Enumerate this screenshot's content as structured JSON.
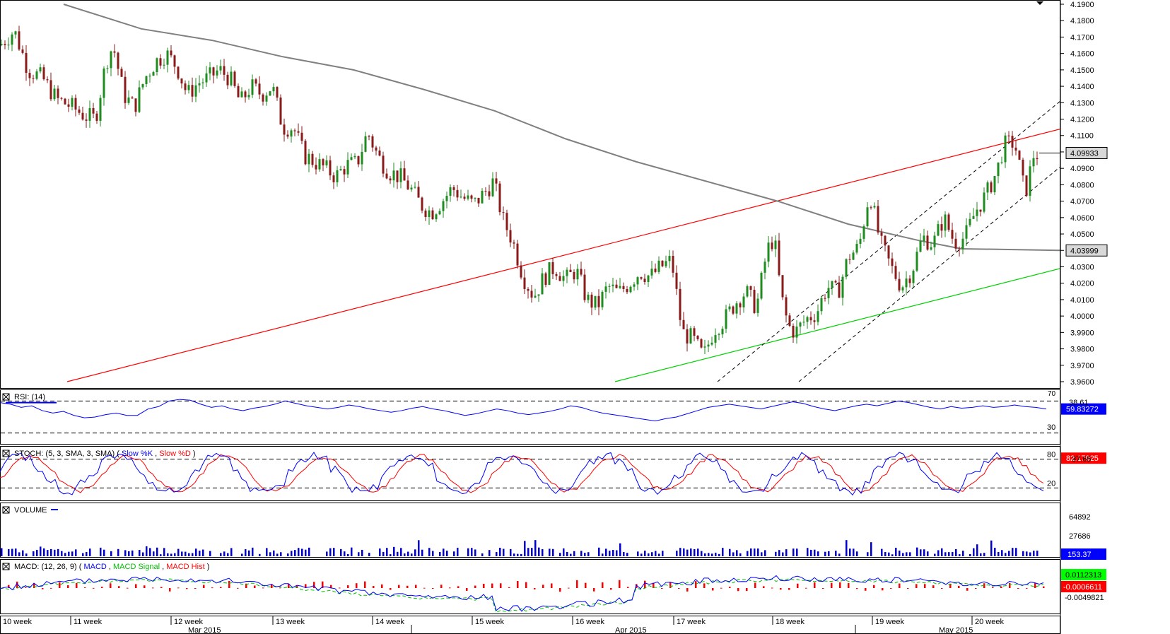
{
  "chart_data": {
    "type": "candlestick",
    "title": "",
    "colors": {
      "up_candle": "#1f8c1f",
      "down_candle": "#8b1a1a",
      "moving_average": "#808080",
      "upper_trendline": "#ff0000",
      "lower_trendline": "#00d000",
      "channel": "#000000",
      "rsi": "#0000ff",
      "stoch_k": "#0000ff",
      "stoch_d": "#ff0000",
      "volume": "#0000cc",
      "macd": "#0000ff",
      "macd_signal": "#00c000",
      "macd_hist": "#ff0000",
      "price_badge": "#d8d8d8",
      "value_badge_blue": "#0000ff",
      "value_badge_red": "#ff0000",
      "value_badge_green": "#00ff00"
    },
    "price_panel": {
      "ylim": [
        3.96,
        4.19
      ],
      "yticks": [
        "4.1900",
        "4.1800",
        "4.1700",
        "4.1600",
        "4.1500",
        "4.1400",
        "4.1300",
        "4.1200",
        "4.1100",
        "4.1000",
        "4.0900",
        "4.0800",
        "4.0700",
        "4.0600",
        "4.0500",
        "4.0400",
        "4.0300",
        "4.0200",
        "4.0100",
        "4.0000",
        "3.9900",
        "3.9800",
        "3.9700",
        "3.9600"
      ],
      "last_price_label": "4.09933",
      "ma_price_label": "4.03999",
      "price_points": [
        [
          0,
          4.165
        ],
        [
          20,
          4.174
        ],
        [
          40,
          4.15
        ],
        [
          60,
          4.145
        ],
        [
          80,
          4.132
        ],
        [
          100,
          4.128
        ],
        [
          120,
          4.122
        ],
        [
          135,
          4.12
        ],
        [
          150,
          4.155
        ],
        [
          160,
          4.165
        ],
        [
          175,
          4.135
        ],
        [
          190,
          4.127
        ],
        [
          205,
          4.145
        ],
        [
          220,
          4.155
        ],
        [
          235,
          4.16
        ],
        [
          250,
          4.152
        ],
        [
          265,
          4.135
        ],
        [
          280,
          4.142
        ],
        [
          295,
          4.145
        ],
        [
          310,
          4.15
        ],
        [
          325,
          4.145
        ],
        [
          340,
          4.13
        ],
        [
          355,
          4.14
        ],
        [
          370,
          4.135
        ],
        [
          385,
          4.14
        ],
        [
          400,
          4.115
        ],
        [
          415,
          4.115
        ],
        [
          430,
          4.098
        ],
        [
          445,
          4.094
        ],
        [
          460,
          4.09
        ],
        [
          475,
          4.085
        ],
        [
          490,
          4.092
        ],
        [
          505,
          4.093
        ],
        [
          520,
          4.112
        ],
        [
          535,
          4.097
        ],
        [
          550,
          4.088
        ],
        [
          565,
          4.085
        ],
        [
          580,
          4.078
        ],
        [
          595,
          4.068
        ],
        [
          610,
          4.063
        ],
        [
          625,
          4.07
        ],
        [
          640,
          4.078
        ],
        [
          655,
          4.072
        ],
        [
          670,
          4.068
        ],
        [
          685,
          4.075
        ],
        [
          698,
          4.082
        ],
        [
          712,
          4.058
        ],
        [
          725,
          4.046
        ],
        [
          740,
          4.024
        ],
        [
          755,
          4.012
        ],
        [
          770,
          4.024
        ],
        [
          785,
          4.03
        ],
        [
          800,
          4.022
        ],
        [
          815,
          4.028
        ],
        [
          830,
          4.01
        ],
        [
          845,
          4.006
        ],
        [
          860,
          4.018
        ],
        [
          875,
          4.014
        ],
        [
          890,
          4.02
        ],
        [
          905,
          4.027
        ],
        [
          920,
          4.024
        ],
        [
          935,
          4.03
        ],
        [
          950,
          4.034
        ],
        [
          965,
          3.99
        ],
        [
          980,
          3.986
        ],
        [
          995,
          3.975
        ],
        [
          1010,
          3.992
        ],
        [
          1025,
          3.998
        ],
        [
          1040,
          4.008
        ],
        [
          1055,
          4.015
        ],
        [
          1070,
          4.005
        ],
        [
          1085,
          4.04
        ],
        [
          1095,
          4.048
        ],
        [
          1105,
          4.012
        ],
        [
          1115,
          3.994
        ],
        [
          1125,
          3.99
        ],
        [
          1140,
          3.998
        ],
        [
          1155,
          4.002
        ],
        [
          1170,
          4.018
        ],
        [
          1185,
          4.014
        ],
        [
          1200,
          4.036
        ],
        [
          1215,
          4.042
        ],
        [
          1230,
          4.076
        ],
        [
          1245,
          4.045
        ],
        [
          1260,
          4.03
        ],
        [
          1275,
          4.018
        ],
        [
          1290,
          4.028
        ],
        [
          1305,
          4.048
        ],
        [
          1320,
          4.044
        ],
        [
          1335,
          4.06
        ],
        [
          1350,
          4.045
        ],
        [
          1365,
          4.048
        ],
        [
          1380,
          4.064
        ],
        [
          1395,
          4.074
        ],
        [
          1410,
          4.088
        ],
        [
          1420,
          4.104
        ],
        [
          1435,
          4.106
        ],
        [
          1450,
          4.074
        ],
        [
          1462,
          4.098
        ],
        [
          1472,
          4.099
        ]
      ],
      "moving_average_points": [
        [
          90,
          4.19
        ],
        [
          200,
          4.175
        ],
        [
          300,
          4.168
        ],
        [
          400,
          4.158
        ],
        [
          500,
          4.15
        ],
        [
          600,
          4.138
        ],
        [
          700,
          4.125
        ],
        [
          800,
          4.108
        ],
        [
          900,
          4.094
        ],
        [
          1000,
          4.082
        ],
        [
          1100,
          4.07
        ],
        [
          1200,
          4.056
        ],
        [
          1300,
          4.046
        ],
        [
          1360,
          4.041
        ],
        [
          1500,
          4.04
        ]
      ],
      "upper_trendline": [
        [
          95,
          3.96
        ],
        [
          1500,
          4.114
        ]
      ],
      "lower_trendline": [
        [
          870,
          3.96
        ],
        [
          1500,
          4.029
        ]
      ],
      "channel_lines": [
        [
          [
            1015,
            3.96
          ],
          [
            1500,
            4.131
          ]
        ],
        [
          [
            1130,
            3.96
          ],
          [
            1500,
            4.091
          ]
        ]
      ]
    },
    "rsi_panel": {
      "label": "RSI: (14)",
      "levels": [
        "30"
      ],
      "level_values": [
        70,
        30
      ],
      "value_label": "59.83272",
      "mid_label": "38.61",
      "top_label": "70",
      "ylim": [
        20,
        80
      ],
      "values": [
        68,
        66,
        62,
        64,
        58,
        55,
        57,
        52,
        49,
        50,
        53,
        55,
        52,
        52,
        60,
        63,
        70,
        72,
        71,
        66,
        62,
        64,
        60,
        58,
        61,
        63,
        66,
        70,
        67,
        64,
        62,
        60,
        62,
        65,
        63,
        60,
        58,
        56,
        58,
        61,
        63,
        60,
        58,
        55,
        52,
        54,
        57,
        60,
        58,
        55,
        53,
        55,
        57,
        60,
        64,
        62,
        58,
        55,
        53,
        51,
        49,
        47,
        45,
        48,
        50,
        54,
        58,
        62,
        64,
        66,
        64,
        62,
        60,
        63,
        66,
        69,
        67,
        63,
        60,
        58,
        61,
        64,
        66,
        64,
        67,
        70,
        68,
        65,
        62,
        60,
        63,
        61,
        62,
        64,
        62,
        63,
        65,
        63,
        62,
        60
      ]
    },
    "stoch_panel": {
      "label": "STOCH: (5, 3, SMA, 3, SMA)",
      "k_label": "Slow %K",
      "d_label": "Slow %D",
      "levels": [
        "80",
        "20"
      ],
      "value_label": "82.17925",
      "mid_label": "37.65",
      "ylim": [
        0,
        100
      ]
    },
    "volume_panel": {
      "label": "VOLUME",
      "ticks": [
        "64892",
        "27686"
      ],
      "value_label": "153.37",
      "spike_position": 441,
      "spike_value": 64892
    },
    "macd_panel": {
      "label": "MACD: (12, 26, 9)",
      "macd_label": "MACD",
      "signal_label": "MACD Signal",
      "hist_label": "MACD Hist",
      "value_labels": [
        "0.0112313",
        "-0.0006611",
        "-0.0049821"
      ]
    },
    "x_axis": {
      "week_labels": [
        "10 week",
        "11 week",
        "12 week",
        "13 week",
        "14 week",
        "15 week",
        "16 week",
        "17 week",
        "18 week",
        "19 week",
        "20 week"
      ],
      "month_labels": [
        "Mar 2015",
        "Apr 2015",
        "May 2015"
      ]
    }
  }
}
